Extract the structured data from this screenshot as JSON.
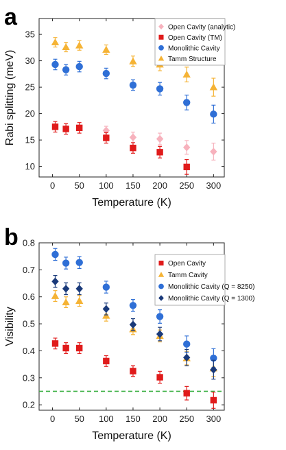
{
  "chart_data": [
    {
      "panel_label": "a",
      "type": "scatter",
      "xlabel": "Temperature (K)",
      "ylabel": "Rabi splitting (meV)",
      "xlim": [
        -25,
        320
      ],
      "ylim": [
        8,
        38
      ],
      "xticks": [
        0,
        50,
        100,
        150,
        200,
        250,
        300
      ],
      "yticks": [
        10,
        15,
        20,
        25,
        30,
        35
      ],
      "grid": false,
      "legend_position": "top-right",
      "series": [
        {
          "name": "Open Cavity (analytic)",
          "marker": "diamond",
          "color": "#f7b2bd",
          "x": [
            100,
            150,
            200,
            250,
            300
          ],
          "y": [
            16.8,
            15.5,
            15.2,
            13.6,
            12.8
          ],
          "err": [
            0.8,
            1.0,
            1.1,
            1.3,
            1.6
          ]
        },
        {
          "name": "Open Cavity (TM)",
          "marker": "square",
          "color": "#e01b1b",
          "x": [
            5,
            25,
            50,
            100,
            150,
            200,
            250
          ],
          "y": [
            17.5,
            17.1,
            17.3,
            15.4,
            13.5,
            12.7,
            9.9
          ],
          "err": [
            1.0,
            1.0,
            1.0,
            1.0,
            1.0,
            1.1,
            1.4
          ]
        },
        {
          "name": "Monolithic Cavity",
          "marker": "circle",
          "color": "#2f6fd6",
          "x": [
            5,
            25,
            50,
            100,
            150,
            200,
            250,
            300
          ],
          "y": [
            29.3,
            28.3,
            28.9,
            27.6,
            25.4,
            24.7,
            22.1,
            19.9
          ],
          "err": [
            1.0,
            1.0,
            1.0,
            1.0,
            1.0,
            1.2,
            1.4,
            1.7
          ]
        },
        {
          "name": "Tamm Structure",
          "marker": "triangle",
          "color": "#f5b335",
          "x": [
            5,
            25,
            50,
            100,
            150,
            200,
            250,
            300
          ],
          "y": [
            33.5,
            32.6,
            32.9,
            32.1,
            29.9,
            29.3,
            27.4,
            25.0
          ],
          "err": [
            0.9,
            0.9,
            0.9,
            0.9,
            1.0,
            1.2,
            1.4,
            1.7
          ]
        }
      ]
    },
    {
      "panel_label": "b",
      "type": "scatter",
      "xlabel": "Temperature (K)",
      "ylabel": "Visibility",
      "xlim": [
        -25,
        320
      ],
      "ylim": [
        0.18,
        0.8
      ],
      "xticks": [
        0,
        50,
        100,
        150,
        200,
        250,
        300
      ],
      "yticks": [
        0.2,
        0.3,
        0.4,
        0.5,
        0.6,
        0.7,
        0.8
      ],
      "ytick_labels": [
        "0.2",
        "0.3",
        "0.4",
        "0.5",
        "0.6",
        "0.7",
        "0.8"
      ],
      "grid": false,
      "legend_position": "top-right",
      "reference_line": {
        "y": 0.25,
        "style": "dashed",
        "color": "#3cb043"
      },
      "series": [
        {
          "name": "Open Cavity",
          "marker": "square",
          "color": "#e01b1b",
          "x": [
            5,
            25,
            50,
            100,
            150,
            200,
            250,
            300
          ],
          "y": [
            0.427,
            0.41,
            0.41,
            0.362,
            0.325,
            0.302,
            0.243,
            0.217
          ],
          "err": [
            0.02,
            0.02,
            0.02,
            0.02,
            0.02,
            0.022,
            0.025,
            0.03
          ]
        },
        {
          "name": "Tamm Cavity",
          "marker": "triangle",
          "color": "#f5b335",
          "x": [
            5,
            25,
            50,
            100,
            150,
            200,
            250,
            300
          ],
          "y": [
            0.603,
            0.58,
            0.585,
            0.53,
            0.48,
            0.455,
            0.373,
            0.335
          ],
          "err": [
            0.02,
            0.02,
            0.02,
            0.02,
            0.02,
            0.022,
            0.025,
            0.03
          ]
        },
        {
          "name": "Monolithic Cavity (Q = 8250)",
          "marker": "circle",
          "color": "#2f6fd6",
          "x": [
            5,
            25,
            50,
            100,
            150,
            200,
            250,
            300
          ],
          "y": [
            0.757,
            0.725,
            0.727,
            0.636,
            0.568,
            0.527,
            0.425,
            0.373
          ],
          "err": [
            0.022,
            0.022,
            0.022,
            0.022,
            0.022,
            0.025,
            0.03,
            0.035
          ]
        },
        {
          "name": "Monolithic Cavity (Q = 1300)",
          "marker": "diamond",
          "color": "#1a3a7a",
          "x": [
            5,
            25,
            50,
            100,
            150,
            200,
            250,
            300
          ],
          "y": [
            0.657,
            0.63,
            0.63,
            0.555,
            0.497,
            0.462,
            0.375,
            0.33
          ],
          "err": [
            0.022,
            0.022,
            0.022,
            0.022,
            0.022,
            0.025,
            0.03,
            0.035
          ]
        }
      ]
    }
  ]
}
